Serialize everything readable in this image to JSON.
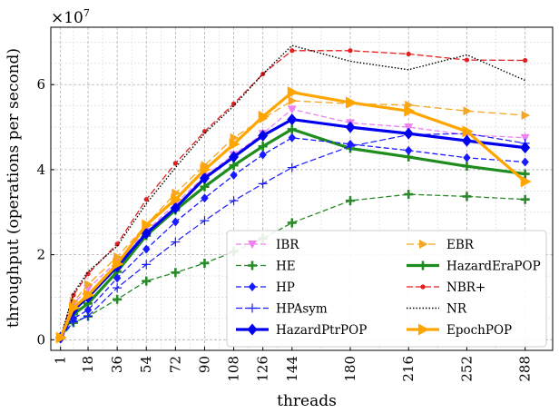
{
  "chart_data": {
    "type": "line",
    "xlabel": "threads",
    "ylabel": "throughput (operations per second)",
    "y_multiplier": "×10",
    "y_multiplier_exp": "7",
    "x_ticks": [
      1,
      18,
      36,
      54,
      72,
      90,
      108,
      126,
      144,
      180,
      216,
      252,
      288
    ],
    "y_ticks": [
      0,
      2,
      4,
      6
    ],
    "xlim": [
      -5,
      305
    ],
    "ylim": [
      -0.25,
      7.35
    ],
    "grid": true,
    "legend_position": "lower-right",
    "series": [
      {
        "name": "IBR",
        "color": "#ee82ee",
        "dash": "6 3",
        "width": 1.3,
        "marker": "tri-down",
        "x": [
          1,
          9,
          18,
          36,
          54,
          72,
          90,
          108,
          126,
          144,
          180,
          216,
          252,
          288
        ],
        "y": [
          0.05,
          0.85,
          1.2,
          1.85,
          2.55,
          3.2,
          3.85,
          4.35,
          4.85,
          5.42,
          5.1,
          5.0,
          4.82,
          4.75
        ]
      },
      {
        "name": "EBR",
        "color": "#f5a623",
        "dash": "8 4",
        "width": 1.3,
        "marker": "tri-right",
        "x": [
          1,
          9,
          18,
          36,
          54,
          72,
          90,
          108,
          126,
          144,
          180,
          216,
          252,
          288
        ],
        "y": [
          0.05,
          0.9,
          1.3,
          1.95,
          2.7,
          3.45,
          4.1,
          4.75,
          5.2,
          5.62,
          5.55,
          5.52,
          5.38,
          5.28
        ]
      },
      {
        "name": "HE",
        "color": "#2a8a2a",
        "dash": "6 3",
        "width": 1.3,
        "marker": "plus",
        "x": [
          1,
          9,
          18,
          36,
          54,
          72,
          90,
          108,
          126,
          144,
          180,
          216,
          252,
          288
        ],
        "y": [
          0.05,
          0.4,
          0.55,
          0.95,
          1.38,
          1.58,
          1.8,
          2.07,
          2.38,
          2.75,
          3.27,
          3.42,
          3.37,
          3.3
        ]
      },
      {
        "name": "HazardEraPOP",
        "color": "#1e8c1e",
        "dash": "",
        "width": 3.2,
        "marker": "plus",
        "x": [
          1,
          9,
          18,
          36,
          54,
          72,
          90,
          108,
          126,
          144,
          180,
          216,
          252,
          288
        ],
        "y": [
          0.05,
          0.6,
          0.85,
          1.6,
          2.45,
          3.05,
          3.6,
          4.1,
          4.55,
          4.95,
          4.5,
          4.3,
          4.08,
          3.9
        ]
      },
      {
        "name": "HP",
        "color": "#1a1aff",
        "dash": "6 3",
        "width": 1.3,
        "marker": "diamond",
        "x": [
          1,
          9,
          18,
          36,
          54,
          72,
          90,
          108,
          126,
          144,
          180,
          216,
          252,
          288
        ],
        "y": [
          0.05,
          0.5,
          0.7,
          1.45,
          2.13,
          2.77,
          3.33,
          3.87,
          4.35,
          4.75,
          4.6,
          4.45,
          4.28,
          4.18
        ]
      },
      {
        "name": "NBR+",
        "color": "#e02020",
        "dash": "7 3",
        "width": 1.3,
        "marker": "dot",
        "x": [
          1,
          9,
          18,
          36,
          54,
          72,
          90,
          108,
          126,
          144,
          180,
          216,
          252,
          288
        ],
        "y": [
          0.05,
          1.05,
          1.55,
          2.25,
          3.3,
          4.15,
          4.9,
          5.55,
          6.25,
          6.8,
          6.8,
          6.72,
          6.58,
          6.57
        ]
      },
      {
        "name": "HPAsym",
        "color": "#1a1aff",
        "dash": "7 3",
        "width": 1.2,
        "marker": "cross",
        "x": [
          1,
          9,
          18,
          36,
          54,
          72,
          90,
          108,
          126,
          144,
          180,
          216,
          252,
          288
        ],
        "y": [
          0.05,
          0.42,
          0.55,
          1.22,
          1.77,
          2.3,
          2.8,
          3.27,
          3.67,
          4.05,
          4.55,
          4.82,
          4.85,
          4.62
        ]
      },
      {
        "name": "NR",
        "color": "#000000",
        "dash": "1.5 2",
        "width": 1.4,
        "marker": "none",
        "x": [
          1,
          9,
          18,
          36,
          54,
          72,
          90,
          108,
          126,
          144,
          180,
          216,
          252,
          288
        ],
        "y": [
          0.05,
          1.1,
          1.6,
          2.2,
          3.2,
          4.05,
          4.85,
          5.5,
          6.25,
          6.92,
          6.55,
          6.35,
          6.7,
          6.1
        ]
      },
      {
        "name": "HazardPtrPOP",
        "color": "#0000ee",
        "dash": "",
        "width": 3.2,
        "marker": "diamond-big",
        "x": [
          1,
          9,
          18,
          36,
          54,
          72,
          90,
          108,
          126,
          144,
          180,
          216,
          252,
          288
        ],
        "y": [
          0.05,
          0.7,
          1.0,
          1.72,
          2.5,
          3.1,
          3.8,
          4.3,
          4.8,
          5.18,
          5.0,
          4.85,
          4.68,
          4.52
        ]
      },
      {
        "name": "EpochPOP",
        "color": "#ffa500",
        "dash": "",
        "width": 3.2,
        "marker": "tri-right-big",
        "x": [
          1,
          9,
          18,
          36,
          54,
          72,
          90,
          108,
          126,
          144,
          180,
          216,
          252,
          288
        ],
        "y": [
          0.05,
          0.75,
          1.05,
          1.78,
          2.7,
          3.3,
          4.0,
          4.6,
          5.25,
          5.82,
          5.58,
          5.38,
          4.9,
          3.72
        ]
      }
    ]
  }
}
